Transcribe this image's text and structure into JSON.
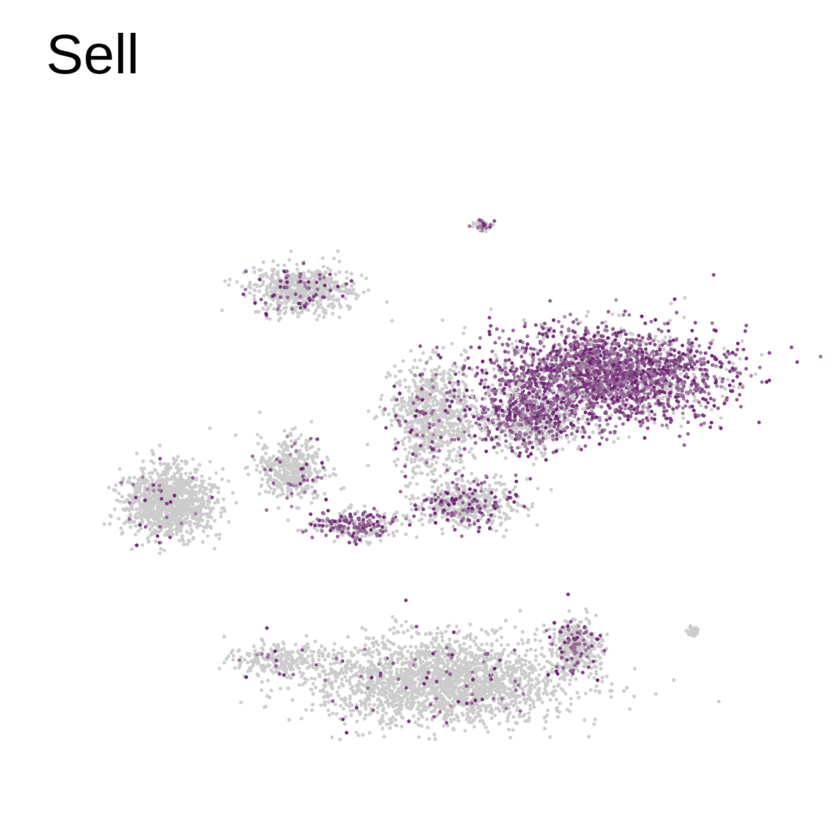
{
  "chart_data": {
    "type": "scatter",
    "title": "Sell",
    "xlabel": "",
    "ylabel": "",
    "grid": false,
    "axes_visible": false,
    "legend": "none",
    "colors": {
      "low": "#cccccc",
      "high": "#6a1b6e",
      "background": "#ffffff"
    },
    "clusters": [
      {
        "name": "top-right-blob",
        "cx": 0.74,
        "cy": 0.61,
        "rx": 0.13,
        "ry": 0.06,
        "n": 2400,
        "expr": 0.75
      },
      {
        "name": "top-right-tail",
        "cx": 0.64,
        "cy": 0.55,
        "rx": 0.06,
        "ry": 0.04,
        "n": 700,
        "expr": 0.45
      },
      {
        "name": "center-stream",
        "cx": 0.52,
        "cy": 0.55,
        "rx": 0.05,
        "ry": 0.07,
        "n": 800,
        "expr": 0.08
      },
      {
        "name": "center-low",
        "cx": 0.56,
        "cy": 0.43,
        "rx": 0.06,
        "ry": 0.03,
        "n": 500,
        "expr": 0.25
      },
      {
        "name": "left-arm",
        "cx": 0.42,
        "cy": 0.4,
        "rx": 0.05,
        "ry": 0.02,
        "n": 260,
        "expr": 0.45
      },
      {
        "name": "bottom-main",
        "cx": 0.53,
        "cy": 0.18,
        "rx": 0.15,
        "ry": 0.055,
        "n": 3000,
        "expr": 0.03
      },
      {
        "name": "bottom-right-arm",
        "cx": 0.7,
        "cy": 0.23,
        "rx": 0.03,
        "ry": 0.035,
        "n": 350,
        "expr": 0.18
      },
      {
        "name": "left-blob",
        "cx": 0.18,
        "cy": 0.43,
        "rx": 0.05,
        "ry": 0.045,
        "n": 1100,
        "expr": 0.02
      },
      {
        "name": "left-mid-cluster",
        "cx": 0.34,
        "cy": 0.48,
        "rx": 0.04,
        "ry": 0.04,
        "n": 420,
        "expr": 0.06
      },
      {
        "name": "top-left-arc",
        "cx": 0.35,
        "cy": 0.73,
        "rx": 0.06,
        "ry": 0.03,
        "n": 620,
        "expr": 0.1
      },
      {
        "name": "bottom-left-strand",
        "cx": 0.32,
        "cy": 0.21,
        "rx": 0.05,
        "ry": 0.018,
        "n": 220,
        "expr": 0.03
      },
      {
        "name": "top-small",
        "cx": 0.58,
        "cy": 0.82,
        "rx": 0.012,
        "ry": 0.006,
        "n": 50,
        "expr": 0.45
      },
      {
        "name": "right-small",
        "cx": 0.85,
        "cy": 0.25,
        "rx": 0.008,
        "ry": 0.008,
        "n": 35,
        "expr": 0.0
      }
    ]
  }
}
